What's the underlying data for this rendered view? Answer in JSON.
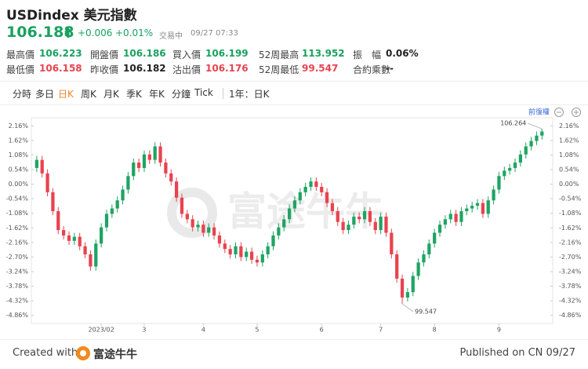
{
  "header": {
    "title": "USDindex 美元指數",
    "price": "106.188",
    "change": "+0.006",
    "change_pct": "+0.01%",
    "status": "交易中",
    "time": "09/27 07:33",
    "stats": [
      [
        {
          "label": "最高價",
          "value": "106.223",
          "color": "#19a15f"
        },
        {
          "label": "開盤價",
          "value": "106.186",
          "color": "#19a15f"
        },
        {
          "label": "買入價",
          "value": "106.199",
          "color": "#19a15f"
        },
        {
          "label": "52周最高",
          "value": "113.952",
          "color": "#19a15f"
        },
        {
          "label": "振　幅",
          "value": "0.06%",
          "color": "#222222"
        }
      ],
      [
        {
          "label": "最低價",
          "value": "106.158",
          "color": "#e8434f"
        },
        {
          "label": "昨收價",
          "value": "106.182",
          "color": "#222222"
        },
        {
          "label": "沽出價",
          "value": "106.176",
          "color": "#e8434f"
        },
        {
          "label": "52周最低",
          "value": "99.547",
          "color": "#e8434f"
        },
        {
          "label": "合約乘數",
          "value": "--",
          "color": "#222222"
        }
      ]
    ],
    "tabs": [
      "分時",
      "多日",
      "日K",
      "周K",
      "月K",
      "季K",
      "年K",
      "分鐘",
      "Tick"
    ],
    "active_tab": 2,
    "range_tab": "1年：日K"
  },
  "chart_data": {
    "type": "candlestick",
    "adjust_label": "前復權",
    "watermark": "富途牛牛",
    "up_color": "#1fa463",
    "down_color": "#e8434f",
    "xlim": [
      -1,
      96
    ],
    "ylim": [
      -5.16,
      2.46
    ],
    "xticks": [
      {
        "value": 12,
        "label": "2023/02"
      },
      {
        "value": 20,
        "label": "3"
      },
      {
        "value": 31,
        "label": "4"
      },
      {
        "value": 41,
        "label": "5"
      },
      {
        "value": 53,
        "label": "6"
      },
      {
        "value": 64,
        "label": "7"
      },
      {
        "value": 74,
        "label": "8"
      },
      {
        "value": 86,
        "label": "9"
      }
    ],
    "yticks": [
      {
        "value": 2.16,
        "label": "2.16%"
      },
      {
        "value": 1.62,
        "label": "1.62%"
      },
      {
        "value": 1.08,
        "label": "1.08%"
      },
      {
        "value": 0.54,
        "label": "0.54%"
      },
      {
        "value": 0,
        "label": "0.00%"
      },
      {
        "value": -0.54,
        "label": "-0.54%"
      },
      {
        "value": -1.08,
        "label": "-1.08%"
      },
      {
        "value": -1.62,
        "label": "-1.62%"
      },
      {
        "value": -2.16,
        "label": "-2.16%"
      },
      {
        "value": -2.7,
        "label": "-2.70%"
      },
      {
        "value": -3.24,
        "label": "-3.24%"
      },
      {
        "value": -3.78,
        "label": "-3.78%"
      },
      {
        "value": -4.32,
        "label": "-4.32%"
      },
      {
        "value": -4.86,
        "label": "-4.86%"
      }
    ],
    "open": [
      0.6,
      0.9,
      0.4,
      -0.3,
      -1.0,
      -1.7,
      -1.9,
      -2.1,
      -1.95,
      -2.3,
      -2.6,
      -3.05,
      -2.2,
      -1.6,
      -1.1,
      -0.9,
      -0.6,
      -0.2,
      0.3,
      0.8,
      0.6,
      1.1,
      0.9,
      1.4,
      0.8,
      0.4,
      0.1,
      -0.5,
      -1.1,
      -1.3,
      -1.6,
      -1.5,
      -1.8,
      -1.6,
      -1.9,
      -2.2,
      -2.4,
      -2.6,
      -2.3,
      -2.7,
      -2.5,
      -2.8,
      -2.9,
      -2.6,
      -2.3,
      -1.9,
      -1.6,
      -1.3,
      -0.9,
      -0.6,
      -0.3,
      -0.1,
      0.1,
      -0.1,
      -0.3,
      -0.7,
      -1.0,
      -1.4,
      -1.7,
      -1.5,
      -1.2,
      -1.3,
      -1.0,
      -1.4,
      -1.7,
      -1.2,
      -1.8,
      -2.6,
      -3.5,
      -4.2,
      -4.0,
      -3.4,
      -2.9,
      -2.6,
      -2.2,
      -1.8,
      -1.5,
      -1.3,
      -1.1,
      -1.4,
      -1.0,
      -0.9,
      -0.8,
      -0.7,
      -1.1,
      -0.6,
      -0.2,
      0.3,
      0.5,
      0.6,
      0.8,
      1.1,
      1.4,
      1.6,
      1.8
    ],
    "high": [
      1.05,
      1.05,
      0.55,
      -0.15,
      -0.85,
      -1.55,
      -1.75,
      -1.8,
      -1.8,
      -2.15,
      -2.45,
      -2.05,
      -1.45,
      -0.95,
      -0.75,
      -0.45,
      -0.05,
      0.45,
      0.95,
      0.95,
      1.25,
      1.25,
      1.55,
      1.55,
      0.95,
      0.55,
      0.25,
      -0.35,
      -0.95,
      -1.15,
      -1.35,
      -1.35,
      -1.45,
      -1.45,
      -1.75,
      -2.05,
      -2.25,
      -2.15,
      -2.15,
      -2.35,
      -2.35,
      -2.65,
      -2.45,
      -2.15,
      -1.75,
      -1.45,
      -1.15,
      -0.75,
      -0.45,
      -0.15,
      0.05,
      0.25,
      0.25,
      0.05,
      -0.15,
      -0.55,
      -0.85,
      -1.25,
      -1.35,
      -1.05,
      -1.05,
      -0.85,
      -0.85,
      -1.25,
      -1.05,
      -1.05,
      -1.65,
      -2.45,
      -3.35,
      -3.85,
      -3.25,
      -2.75,
      -2.45,
      -2.05,
      -1.65,
      -1.35,
      -1.15,
      -0.95,
      -0.95,
      -0.85,
      -0.75,
      -0.65,
      -0.55,
      -0.55,
      -0.45,
      -0.05,
      0.45,
      0.65,
      0.75,
      0.95,
      1.25,
      1.55,
      1.75,
      1.95,
      2.05
    ],
    "low": [
      0.45,
      0.25,
      -0.45,
      -1.15,
      -1.85,
      -2.05,
      -2.25,
      -2.25,
      -2.45,
      -2.75,
      -3.2,
      -3.2,
      -2.35,
      -1.75,
      -1.25,
      -1.05,
      -0.75,
      -0.35,
      0.15,
      0.45,
      0.45,
      0.75,
      0.75,
      0.65,
      0.25,
      -0.05,
      -0.65,
      -1.25,
      -1.45,
      -1.75,
      -1.75,
      -1.95,
      -1.95,
      -2.05,
      -2.35,
      -2.55,
      -2.75,
      -2.75,
      -2.85,
      -2.85,
      -2.95,
      -3.05,
      -3.05,
      -2.75,
      -2.45,
      -2.05,
      -1.75,
      -1.45,
      -1.05,
      -0.75,
      -0.45,
      -0.25,
      -0.25,
      -0.45,
      -0.85,
      -1.15,
      -1.55,
      -1.85,
      -1.85,
      -1.65,
      -1.45,
      -1.45,
      -1.55,
      -1.85,
      -1.85,
      -1.95,
      -2.75,
      -3.65,
      -4.43,
      -4.35,
      -4.15,
      -3.55,
      -3.05,
      -2.75,
      -2.35,
      -1.95,
      -1.65,
      -1.45,
      -1.55,
      -1.55,
      -1.15,
      -1.05,
      -0.95,
      -1.25,
      -1.25,
      -0.75,
      -0.35,
      0.15,
      0.35,
      0.45,
      0.65,
      0.95,
      1.25,
      1.45,
      1.65
    ],
    "close": [
      0.9,
      0.4,
      -0.3,
      -1.0,
      -1.7,
      -1.9,
      -2.1,
      -1.95,
      -2.3,
      -2.6,
      -3.05,
      -2.2,
      -1.6,
      -1.1,
      -0.9,
      -0.6,
      -0.2,
      0.3,
      0.8,
      0.6,
      1.1,
      0.9,
      1.4,
      0.8,
      0.4,
      0.1,
      -0.5,
      -1.1,
      -1.3,
      -1.6,
      -1.5,
      -1.8,
      -1.6,
      -1.9,
      -2.2,
      -2.4,
      -2.6,
      -2.3,
      -2.7,
      -2.5,
      -2.8,
      -2.9,
      -2.6,
      -2.3,
      -1.9,
      -1.6,
      -1.3,
      -0.9,
      -0.6,
      -0.3,
      -0.1,
      0.1,
      -0.1,
      -0.3,
      -0.7,
      -1.0,
      -1.4,
      -1.7,
      -1.5,
      -1.2,
      -1.3,
      -1.0,
      -1.4,
      -1.7,
      -1.2,
      -1.8,
      -2.6,
      -3.5,
      -4.2,
      -4.0,
      -3.4,
      -2.9,
      -2.6,
      -2.2,
      -1.8,
      -1.5,
      -1.3,
      -1.1,
      -1.4,
      -1.0,
      -0.9,
      -0.8,
      -0.7,
      -1.1,
      -0.6,
      -0.2,
      0.3,
      0.5,
      0.6,
      0.8,
      1.1,
      1.4,
      1.6,
      1.8,
      1.95
    ],
    "annotations": [
      {
        "text": "106.264",
        "x": 94,
        "y": 2.05
      },
      {
        "text": "99.547",
        "x": 68,
        "y": -4.43
      }
    ]
  },
  "footer": {
    "created": "Created with",
    "brand": "富途牛牛",
    "published": "Published on CN 09/27"
  }
}
